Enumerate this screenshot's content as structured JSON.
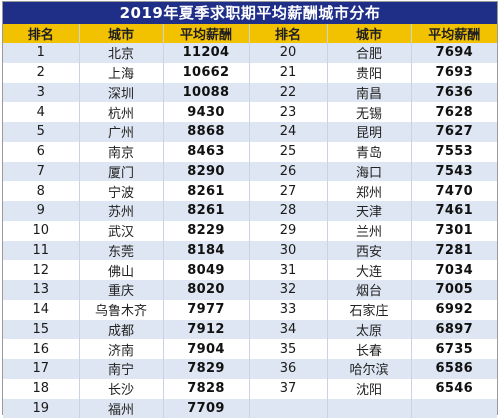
{
  "title": "2019年夏季求职期平均薪酬城市分布",
  "headers": [
    "排名",
    "城市",
    "平均薪酬",
    "排名",
    "城市",
    "平均薪酬"
  ],
  "left": [
    {
      "rank": "1",
      "city": "北京",
      "salary": "11204"
    },
    {
      "rank": "2",
      "city": "上海",
      "salary": "10662"
    },
    {
      "rank": "3",
      "city": "深圳",
      "salary": "10088"
    },
    {
      "rank": "4",
      "city": "杭州",
      "salary": "9430"
    },
    {
      "rank": "5",
      "city": "广州",
      "salary": "8868"
    },
    {
      "rank": "6",
      "city": "南京",
      "salary": "8463"
    },
    {
      "rank": "7",
      "city": "厦门",
      "salary": "8290"
    },
    {
      "rank": "8",
      "city": "宁波",
      "salary": "8261"
    },
    {
      "rank": "9",
      "city": "苏州",
      "salary": "8261"
    },
    {
      "rank": "10",
      "city": "武汉",
      "salary": "8229"
    },
    {
      "rank": "11",
      "city": "东莞",
      "salary": "8184"
    },
    {
      "rank": "12",
      "city": "佛山",
      "salary": "8049"
    },
    {
      "rank": "13",
      "city": "重庆",
      "salary": "8020"
    },
    {
      "rank": "14",
      "city": "乌鲁木齐",
      "salary": "7977"
    },
    {
      "rank": "15",
      "city": "成都",
      "salary": "7912"
    },
    {
      "rank": "16",
      "city": "济南",
      "salary": "7904"
    },
    {
      "rank": "17",
      "city": "南宁",
      "salary": "7829"
    },
    {
      "rank": "18",
      "city": "长沙",
      "salary": "7828"
    },
    {
      "rank": "19",
      "city": "福州",
      "salary": "7709"
    }
  ],
  "right": [
    {
      "rank": "20",
      "city": "合肥",
      "salary": "7694"
    },
    {
      "rank": "21",
      "city": "贵阳",
      "salary": "7693"
    },
    {
      "rank": "22",
      "city": "南昌",
      "salary": "7636"
    },
    {
      "rank": "23",
      "city": "无锡",
      "salary": "7628"
    },
    {
      "rank": "24",
      "city": "昆明",
      "salary": "7627"
    },
    {
      "rank": "25",
      "city": "青岛",
      "salary": "7553"
    },
    {
      "rank": "26",
      "city": "海口",
      "salary": "7543"
    },
    {
      "rank": "27",
      "city": "郑州",
      "salary": "7470"
    },
    {
      "rank": "28",
      "city": "天津",
      "salary": "7461"
    },
    {
      "rank": "29",
      "city": "兰州",
      "salary": "7301"
    },
    {
      "rank": "30",
      "city": "西安",
      "salary": "7281"
    },
    {
      "rank": "31",
      "city": "大连",
      "salary": "7034"
    },
    {
      "rank": "32",
      "city": "烟台",
      "salary": "7005"
    },
    {
      "rank": "33",
      "city": "石家庄",
      "salary": "6992"
    },
    {
      "rank": "34",
      "city": "太原",
      "salary": "6897"
    },
    {
      "rank": "35",
      "city": "长春",
      "salary": "6735"
    },
    {
      "rank": "36",
      "city": "哈尔滨",
      "salary": "6586"
    },
    {
      "rank": "37",
      "city": "沈阳",
      "salary": "6546"
    },
    {
      "rank": "",
      "city": "",
      "salary": ""
    }
  ]
}
